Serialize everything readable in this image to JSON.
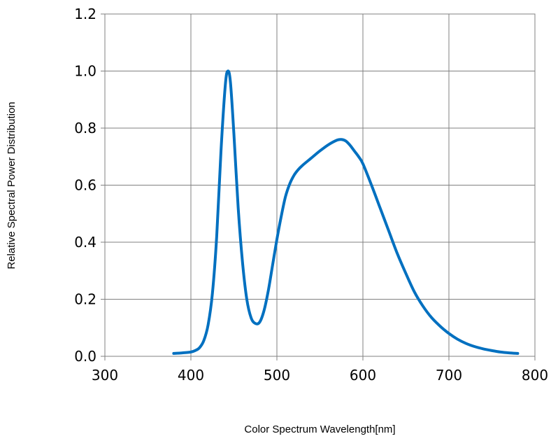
{
  "chart_data": {
    "type": "line",
    "title": "",
    "xlabel": "Color Spectrum Wavelength[nm]",
    "ylabel": "Relative Spectral Power Distribution",
    "xlim": [
      300,
      800
    ],
    "ylim": [
      0.0,
      1.2
    ],
    "x_ticks": [
      300,
      400,
      500,
      600,
      700,
      800
    ],
    "x_tick_labels": [
      "300",
      "400",
      "500",
      "600",
      "700",
      "800"
    ],
    "y_ticks": [
      0.0,
      0.2,
      0.4,
      0.6,
      0.8,
      1.0,
      1.2
    ],
    "y_tick_labels": [
      "0.0",
      "0.2",
      "0.4",
      "0.6",
      "0.8",
      "1.0",
      "1.2"
    ],
    "grid": true,
    "legend": "none",
    "series": [
      {
        "color": "#0070C0",
        "x": [
          380,
          390,
          400,
          405,
          410,
          415,
          420,
          425,
          430,
          435,
          440,
          443,
          446,
          450,
          455,
          460,
          465,
          470,
          475,
          480,
          485,
          490,
          495,
          500,
          505,
          510,
          515,
          520,
          525,
          530,
          540,
          550,
          560,
          570,
          575,
          580,
          585,
          590,
          595,
          600,
          610,
          620,
          630,
          640,
          650,
          660,
          670,
          680,
          690,
          700,
          710,
          720,
          730,
          740,
          750,
          760,
          770,
          780
        ],
        "y": [
          0.01,
          0.012,
          0.015,
          0.02,
          0.03,
          0.055,
          0.11,
          0.22,
          0.42,
          0.72,
          0.95,
          1.0,
          0.96,
          0.78,
          0.52,
          0.33,
          0.2,
          0.135,
          0.115,
          0.12,
          0.16,
          0.23,
          0.32,
          0.41,
          0.49,
          0.56,
          0.605,
          0.635,
          0.655,
          0.67,
          0.695,
          0.72,
          0.742,
          0.758,
          0.76,
          0.755,
          0.74,
          0.72,
          0.7,
          0.675,
          0.6,
          0.52,
          0.44,
          0.36,
          0.29,
          0.225,
          0.175,
          0.135,
          0.105,
          0.08,
          0.06,
          0.045,
          0.034,
          0.026,
          0.02,
          0.015,
          0.012,
          0.01
        ]
      }
    ]
  }
}
